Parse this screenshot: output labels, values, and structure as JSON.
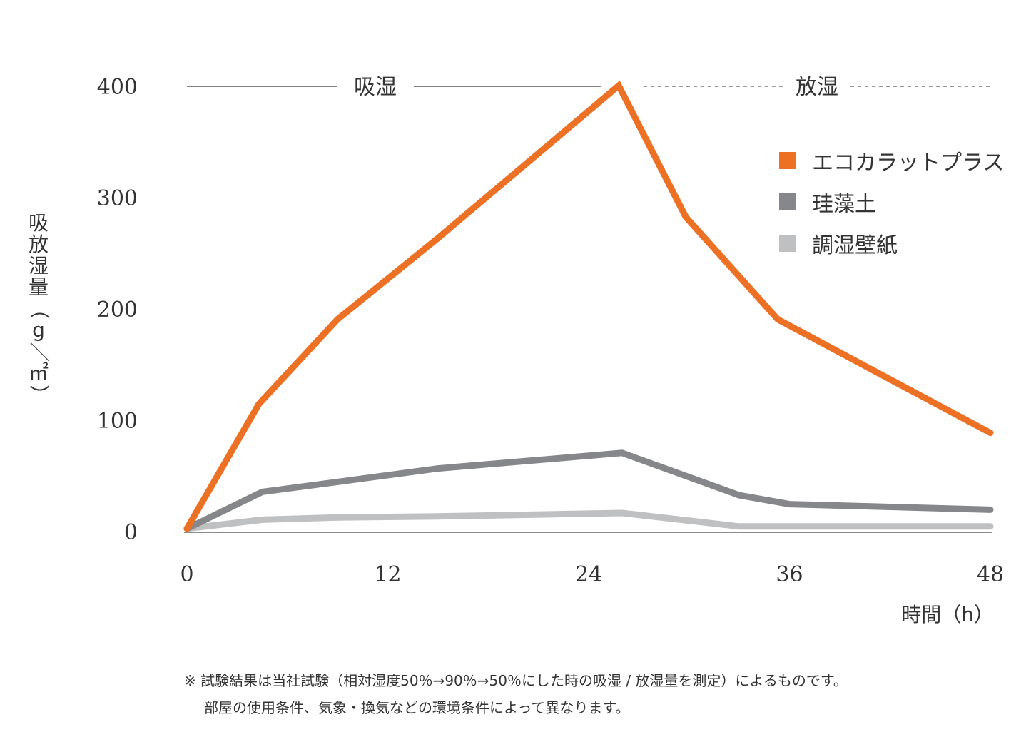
{
  "chart_data": {
    "type": "line",
    "x": [
      0,
      4.5,
      9,
      15,
      26,
      30,
      33,
      36,
      48
    ],
    "xlim": [
      0,
      48
    ],
    "ylim": [
      0,
      400
    ],
    "xticks": [
      "0",
      "12",
      "24",
      "36",
      "48"
    ],
    "xtick_values": [
      0,
      12,
      24,
      36,
      48
    ],
    "yticks": [
      "0",
      "100",
      "200",
      "300",
      "400"
    ],
    "ytick_values": [
      0,
      100,
      200,
      300,
      400
    ],
    "xlabel": "時間（h）",
    "ylabel": "吸放湿量（g／㎡）",
    "legend_position": "top-right",
    "phases": [
      {
        "label": "吸湿",
        "from": 0,
        "to": 26,
        "style": "solid"
      },
      {
        "label": "放湿",
        "from": 26,
        "to": 48,
        "style": "dashed"
      }
    ],
    "series": [
      {
        "name": "エコカラットプラス",
        "color": "#ec7125",
        "points": [
          [
            0,
            2
          ],
          [
            4.3,
            114
          ],
          [
            9,
            190
          ],
          [
            15,
            263
          ],
          [
            25.8,
            400
          ],
          [
            29.8,
            282
          ],
          [
            35.3,
            190
          ],
          [
            48,
            88
          ]
        ]
      },
      {
        "name": "珪藻土",
        "color": "#86878a",
        "points": [
          [
            0,
            2
          ],
          [
            4.5,
            35
          ],
          [
            9,
            44
          ],
          [
            15,
            56
          ],
          [
            26,
            70
          ],
          [
            33,
            32
          ],
          [
            36,
            24
          ],
          [
            48,
            19
          ]
        ]
      },
      {
        "name": "調湿壁紙",
        "color": "#bfc0c2",
        "points": [
          [
            0,
            2
          ],
          [
            4.5,
            10
          ],
          [
            9,
            12
          ],
          [
            15,
            13
          ],
          [
            26,
            16
          ],
          [
            33,
            4
          ],
          [
            36,
            4
          ],
          [
            48,
            4
          ]
        ]
      }
    ]
  },
  "notes": [
    "※ 試験結果は当社試験（相対湿度50％→90％→50％にした時の吸湿 / 放湿量を測定）によるものです。",
    "部屋の使用条件、気象・換気などの環境条件によって異なります。"
  ]
}
